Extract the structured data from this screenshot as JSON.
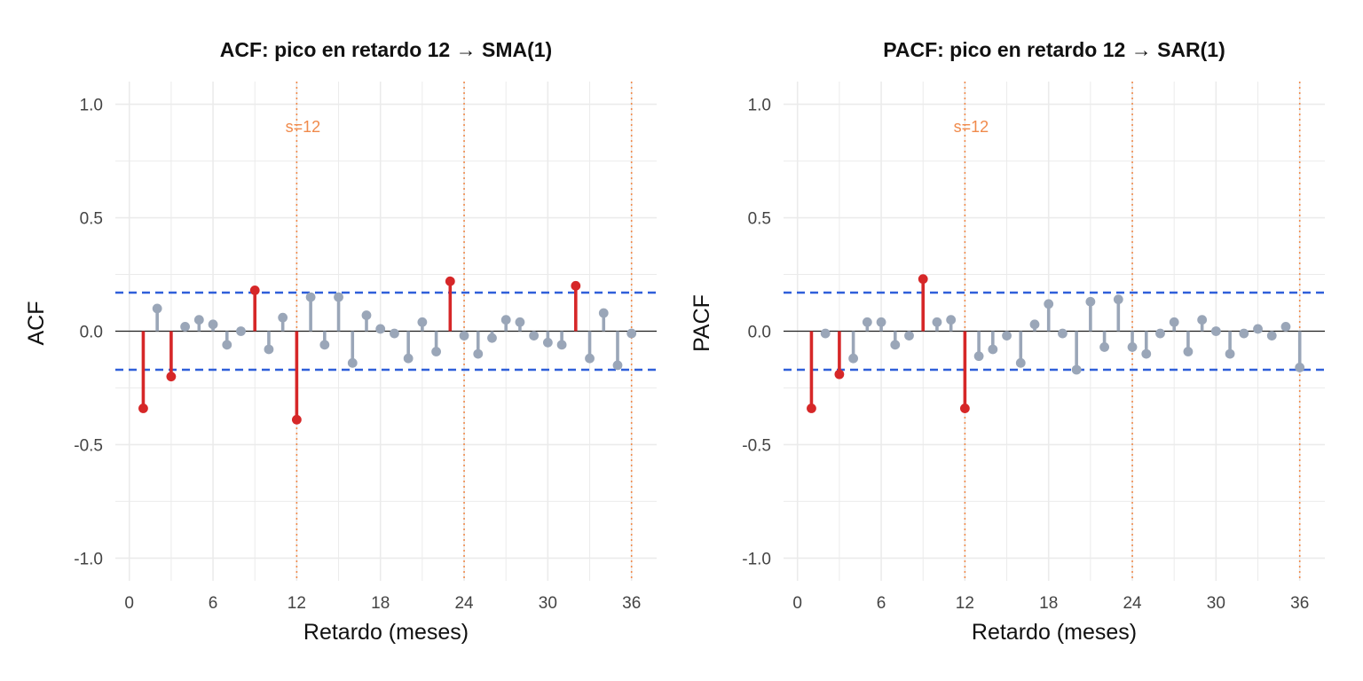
{
  "chart_data": [
    {
      "type": "bar",
      "title": "ACF: pico en retardo 12 → SMA(1)",
      "xlabel": "Retardo (meses)",
      "ylabel": "ACF",
      "xlim": [
        -1,
        37.8
      ],
      "ylim": [
        -1.1,
        1.1
      ],
      "x_ticks": [
        0,
        6,
        12,
        18,
        24,
        30,
        36
      ],
      "y_ticks": [
        1.0,
        0.5,
        0.0,
        -0.5,
        -1.0
      ],
      "y_tick_labels": [
        "1.0",
        "0.5",
        "0.0",
        "-0.5",
        "-1.0"
      ],
      "confidence_band": [
        0.17,
        -0.17
      ],
      "seasonal_lines": [
        12,
        24,
        36
      ],
      "seasonal_label": "s=12",
      "lags": [
        1,
        2,
        3,
        4,
        5,
        6,
        7,
        8,
        9,
        10,
        11,
        12,
        13,
        14,
        15,
        16,
        17,
        18,
        19,
        20,
        21,
        22,
        23,
        24,
        25,
        26,
        27,
        28,
        29,
        30,
        31,
        32,
        33,
        34,
        35,
        36
      ],
      "values": [
        -0.34,
        0.1,
        -0.2,
        0.02,
        0.05,
        0.03,
        -0.06,
        0.0,
        0.18,
        -0.08,
        0.06,
        -0.39,
        0.15,
        -0.06,
        0.15,
        -0.14,
        0.07,
        0.01,
        -0.01,
        -0.12,
        0.04,
        -0.09,
        0.22,
        -0.02,
        -0.1,
        -0.03,
        0.05,
        0.04,
        -0.02,
        -0.05,
        -0.06,
        0.2,
        -0.12,
        0.08,
        -0.15,
        -0.01
      ],
      "grid": true
    },
    {
      "type": "bar",
      "title": "PACF: pico en retardo 12 → SAR(1)",
      "xlabel": "Retardo (meses)",
      "ylabel": "PACF",
      "xlim": [
        -1,
        37.8
      ],
      "ylim": [
        -1.1,
        1.1
      ],
      "x_ticks": [
        0,
        6,
        12,
        18,
        24,
        30,
        36
      ],
      "y_ticks": [
        1.0,
        0.5,
        0.0,
        -0.5,
        -1.0
      ],
      "y_tick_labels": [
        "1.0",
        "0.5",
        "0.0",
        "-0.5",
        "-1.0"
      ],
      "confidence_band": [
        0.17,
        -0.17
      ],
      "seasonal_lines": [
        12,
        24,
        36
      ],
      "seasonal_label": "s=12",
      "lags": [
        1,
        2,
        3,
        4,
        5,
        6,
        7,
        8,
        9,
        10,
        11,
        12,
        13,
        14,
        15,
        16,
        17,
        18,
        19,
        20,
        21,
        22,
        23,
        24,
        25,
        26,
        27,
        28,
        29,
        30,
        31,
        32,
        33,
        34,
        35,
        36
      ],
      "values": [
        -0.34,
        -0.01,
        -0.19,
        -0.12,
        0.04,
        0.04,
        -0.06,
        -0.02,
        0.23,
        0.04,
        0.05,
        -0.34,
        -0.11,
        -0.08,
        -0.02,
        -0.14,
        0.03,
        0.12,
        -0.01,
        -0.17,
        0.13,
        -0.07,
        0.14,
        -0.07,
        -0.1,
        -0.01,
        0.04,
        -0.09,
        0.05,
        0.0,
        -0.1,
        -0.01,
        0.01,
        -0.02,
        0.02,
        -0.16
      ],
      "grid": true
    }
  ],
  "colors": {
    "significant": "#d62728",
    "not_significant": "#9aa6b8",
    "band": "#2f5fd9",
    "seasonal": "#f08a4b",
    "zero_line": "#222222",
    "grid": "#ebebeb",
    "text": "#444444",
    "axis_title": "#111111"
  }
}
